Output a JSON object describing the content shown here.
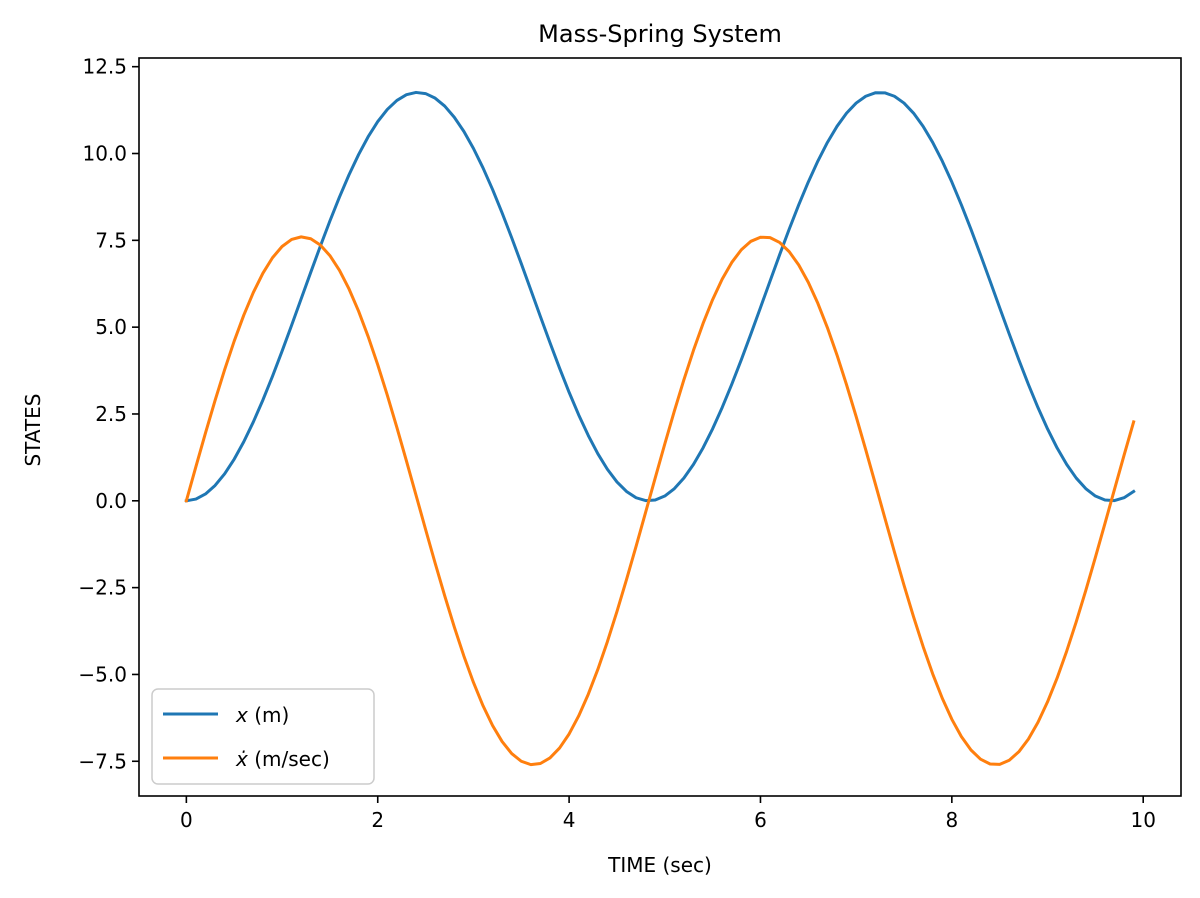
{
  "chart_data": {
    "type": "line",
    "title": "Mass-Spring System",
    "xlabel": "TIME (sec)",
    "ylabel": "STATES",
    "xlim": [
      -0.495,
      10.395
    ],
    "ylim": [
      -8.5,
      12.75
    ],
    "xticks": [
      0,
      2,
      4,
      6,
      8,
      10
    ],
    "xtick_labels": [
      "0",
      "2",
      "4",
      "6",
      "8",
      "10"
    ],
    "yticks": [
      -7.5,
      -5.0,
      -2.5,
      0.0,
      2.5,
      5.0,
      7.5,
      10.0,
      12.5
    ],
    "ytick_labels": [
      "−7.5",
      "−5.0",
      "−2.5",
      "0.0",
      "2.5",
      "5.0",
      "7.5",
      "10.0",
      "12.5"
    ],
    "grid": false,
    "legend_position": "lower-left",
    "x": {
      "start": 0,
      "end": 9.9,
      "step": 0.1
    },
    "series": [
      {
        "name": "x (m)",
        "legend_symbol": "x",
        "legend_unit": " (m)",
        "color": "#1f77b4",
        "formula": "5.88*(1-cos(1.3*t))",
        "peak": 11.76,
        "trough": 0.0
      },
      {
        "name": "ẋ (m/sec)",
        "legend_symbol": "ẋ",
        "legend_unit": " (m/sec)",
        "color": "#ff7f0e",
        "formula": "7.6*sin(1.3*t)",
        "peak": 7.6,
        "trough": -7.6
      }
    ]
  }
}
